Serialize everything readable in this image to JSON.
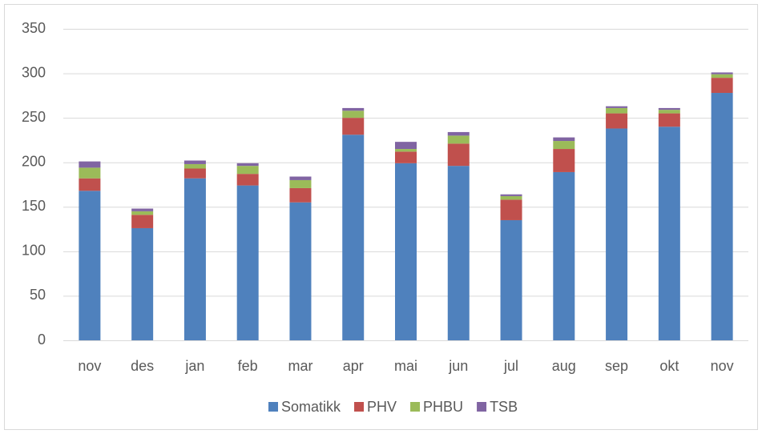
{
  "chart_data": {
    "type": "stacked_bar",
    "categories": [
      "nov",
      "des",
      "jan",
      "feb",
      "mar",
      "apr",
      "mai",
      "jun",
      "jul",
      "aug",
      "sep",
      "okt",
      "nov"
    ],
    "series": [
      {
        "name": "Somatikk",
        "color": "#4f81bd",
        "values": [
          168,
          126,
          182,
          174,
          155,
          231,
          199,
          196,
          135,
          189,
          238,
          240,
          278
        ]
      },
      {
        "name": "PHV",
        "color": "#c0504d",
        "values": [
          14,
          15,
          11,
          13,
          16,
          19,
          13,
          25,
          23,
          26,
          17,
          15,
          17
        ]
      },
      {
        "name": "PHBU",
        "color": "#9bbb59",
        "values": [
          12,
          4,
          5,
          9,
          9,
          8,
          3,
          9,
          4,
          9,
          6,
          4,
          4
        ]
      },
      {
        "name": "TSB",
        "color": "#8064a2",
        "values": [
          7,
          3,
          4,
          3,
          4,
          3,
          8,
          4,
          2,
          4,
          2,
          2,
          2
        ]
      }
    ],
    "ylim": [
      0,
      350
    ],
    "yticks": [
      0,
      50,
      100,
      150,
      200,
      250,
      300,
      350
    ],
    "grid": true,
    "legend": "bottom"
  }
}
